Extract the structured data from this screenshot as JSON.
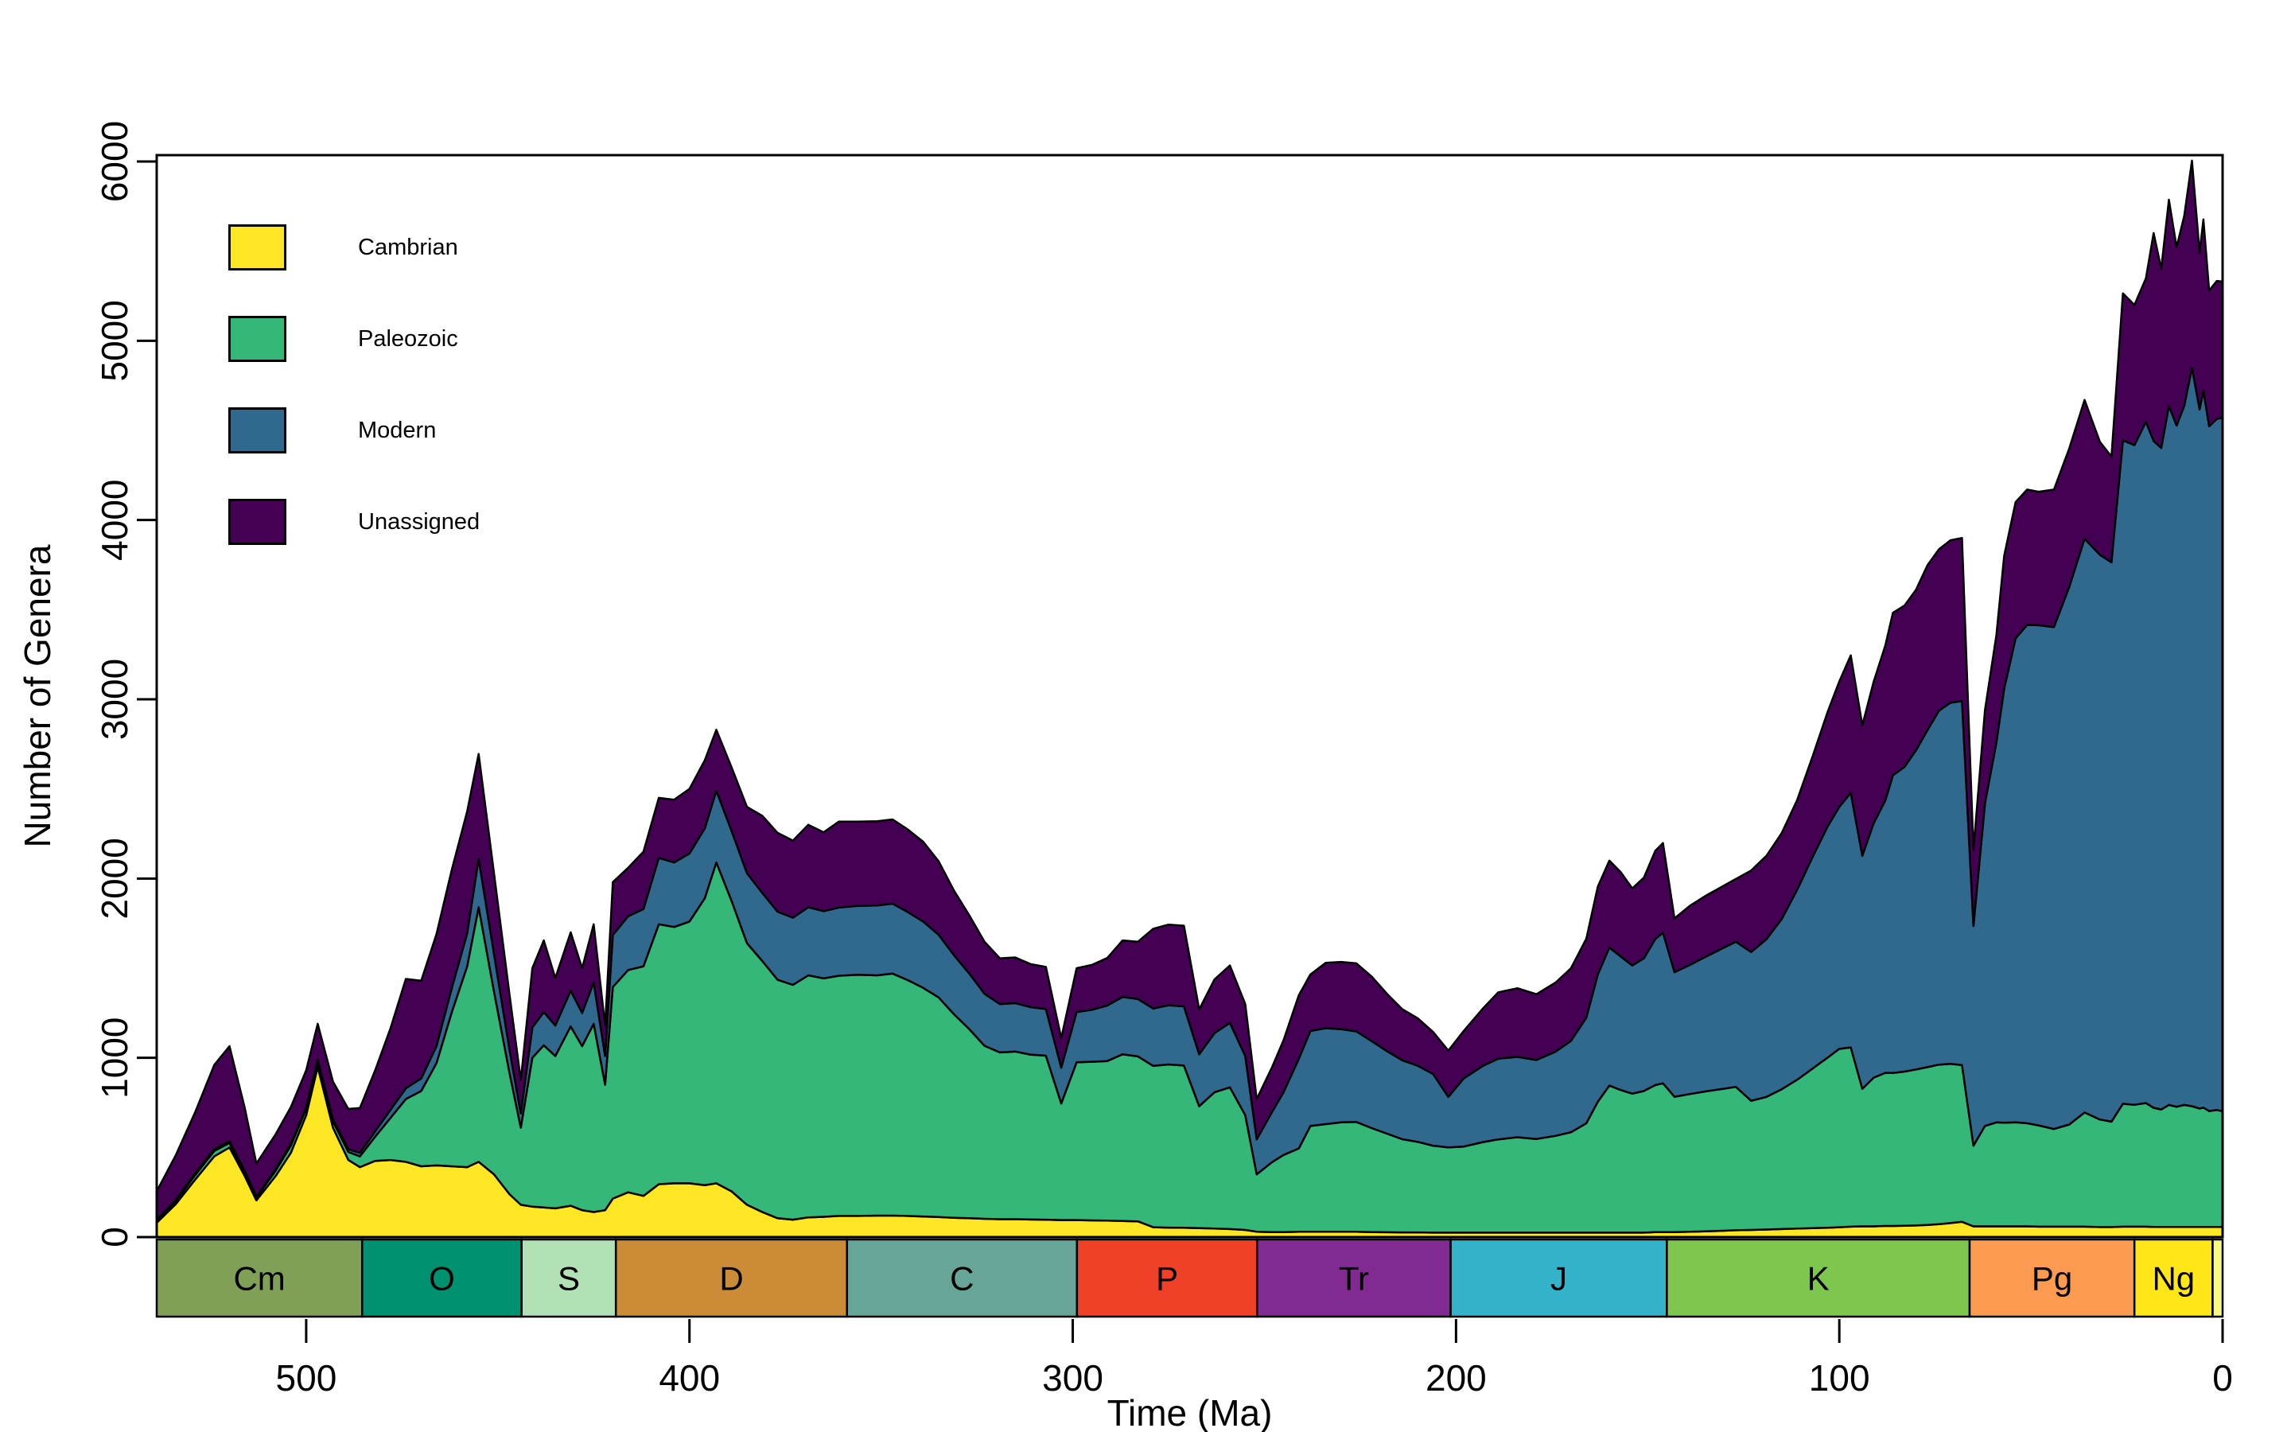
{
  "figure": {
    "background": "#ffffff",
    "border_color": "#000000"
  },
  "axes": {
    "y": {
      "label": "Number of Genera",
      "ticks": [
        0,
        1000,
        2000,
        3000,
        4000,
        5000,
        6000
      ],
      "range": [
        0,
        6000
      ]
    },
    "x": {
      "label": "Time (Ma)",
      "ticks": [
        500,
        400,
        300,
        200,
        100,
        0
      ],
      "range": [
        539,
        0
      ],
      "direction": "reversed"
    }
  },
  "legend": {
    "items": [
      {
        "label": "Cambrian",
        "color": "#FDE725"
      },
      {
        "label": "Paleozoic",
        "color": "#35B779"
      },
      {
        "label": "Modern",
        "color": "#31688E"
      },
      {
        "label": "Unassigned",
        "color": "#440154"
      }
    ]
  },
  "geologic_periods": [
    {
      "abbr": "Cm",
      "start": 539,
      "end": 485.4,
      "color": "#7FA056"
    },
    {
      "abbr": "O",
      "start": 485.4,
      "end": 443.8,
      "color": "#009270"
    },
    {
      "abbr": "S",
      "start": 443.8,
      "end": 419.2,
      "color": "#B3E1B6"
    },
    {
      "abbr": "D",
      "start": 419.2,
      "end": 358.9,
      "color": "#CB8C37"
    },
    {
      "abbr": "C",
      "start": 358.9,
      "end": 298.9,
      "color": "#67A599"
    },
    {
      "abbr": "P",
      "start": 298.9,
      "end": 251.9,
      "color": "#F04028"
    },
    {
      "abbr": "Tr",
      "start": 251.9,
      "end": 201.4,
      "color": "#812B92"
    },
    {
      "abbr": "J",
      "start": 201.4,
      "end": 145.0,
      "color": "#34B2C9"
    },
    {
      "abbr": "K",
      "start": 145.0,
      "end": 66.0,
      "color": "#7FC64E"
    },
    {
      "abbr": "Pg",
      "start": 66.0,
      "end": 23.0,
      "color": "#FD9A52"
    },
    {
      "abbr": "Ng",
      "start": 23.0,
      "end": 2.6,
      "color": "#FFE619"
    },
    {
      "abbr": "",
      "start": 2.6,
      "end": 0,
      "color": "#F9F97F"
    }
  ],
  "chart_data": {
    "type": "area",
    "stacked": true,
    "xlabel": "Time (Ma)",
    "ylabel": "Number of Genera",
    "xlim": [
      539,
      0
    ],
    "ylim": [
      0,
      6000
    ],
    "grid": false,
    "legend_position": "top-left-inside",
    "series_names": [
      "Cambrian",
      "Paleozoic",
      "Modern",
      "Unassigned"
    ],
    "series_colors": [
      "#FDE725",
      "#35B779",
      "#31688E",
      "#440154"
    ],
    "outline_color": "#000000",
    "points_format": [
      "time_ma",
      "cambrian",
      "paleozoic",
      "modern",
      "unassigned"
    ],
    "points": [
      [
        539,
        80,
        10,
        5,
        160
      ],
      [
        534,
        185,
        15,
        8,
        250
      ],
      [
        529,
        320,
        25,
        10,
        340
      ],
      [
        524,
        450,
        30,
        10,
        470
      ],
      [
        520,
        500,
        25,
        10,
        530
      ],
      [
        516,
        340,
        20,
        8,
        350
      ],
      [
        513,
        205,
        15,
        5,
        185
      ],
      [
        508,
        340,
        30,
        8,
        195
      ],
      [
        504,
        470,
        40,
        10,
        205
      ],
      [
        500,
        680,
        35,
        10,
        205
      ],
      [
        497,
        950,
        30,
        10,
        200
      ],
      [
        493,
        610,
        35,
        12,
        210
      ],
      [
        489,
        430,
        45,
        15,
        225
      ],
      [
        486,
        390,
        60,
        20,
        250
      ],
      [
        482,
        425,
        135,
        30,
        340
      ],
      [
        478,
        430,
        235,
        45,
        455
      ],
      [
        474,
        420,
        350,
        60,
        610
      ],
      [
        470,
        395,
        420,
        70,
        545
      ],
      [
        466,
        400,
        570,
        95,
        625
      ],
      [
        462,
        395,
        860,
        135,
        660
      ],
      [
        458,
        390,
        1120,
        185,
        680
      ],
      [
        455,
        420,
        1420,
        270,
        585
      ],
      [
        451,
        350,
        1020,
        210,
        450
      ],
      [
        447,
        240,
        680,
        130,
        310
      ],
      [
        444,
        180,
        430,
        80,
        185
      ],
      [
        441,
        170,
        830,
        170,
        330
      ],
      [
        438,
        165,
        905,
        185,
        400
      ],
      [
        435,
        160,
        850,
        170,
        265
      ],
      [
        431,
        175,
        1000,
        200,
        325
      ],
      [
        428,
        150,
        915,
        185,
        250
      ],
      [
        425,
        140,
        1050,
        230,
        325
      ],
      [
        422,
        150,
        700,
        160,
        170
      ],
      [
        420,
        215,
        1180,
        290,
        295
      ],
      [
        416,
        250,
        1240,
        300,
        270
      ],
      [
        412,
        230,
        1280,
        320,
        320
      ],
      [
        408,
        295,
        1450,
        370,
        335
      ],
      [
        404,
        300,
        1430,
        360,
        350
      ],
      [
        400,
        300,
        1460,
        380,
        360
      ],
      [
        396,
        290,
        1600,
        390,
        380
      ],
      [
        393,
        300,
        1790,
        400,
        340
      ],
      [
        389,
        255,
        1620,
        390,
        355
      ],
      [
        385,
        180,
        1460,
        390,
        370
      ],
      [
        381,
        140,
        1400,
        380,
        430
      ],
      [
        377,
        105,
        1330,
        380,
        440
      ],
      [
        373,
        97,
        1310,
        375,
        430
      ],
      [
        369,
        110,
        1350,
        380,
        460
      ],
      [
        365,
        113,
        1330,
        375,
        440
      ],
      [
        361,
        118,
        1340,
        380,
        480
      ],
      [
        356,
        118,
        1345,
        385,
        470
      ],
      [
        351,
        120,
        1340,
        390,
        470
      ],
      [
        347,
        120,
        1350,
        390,
        470
      ],
      [
        343,
        118,
        1315,
        380,
        460
      ],
      [
        339,
        115,
        1275,
        370,
        445
      ],
      [
        335,
        112,
        1225,
        350,
        410
      ],
      [
        331,
        108,
        1135,
        330,
        360
      ],
      [
        327,
        105,
        1055,
        310,
        325
      ],
      [
        323,
        102,
        965,
        290,
        290
      ],
      [
        319,
        100,
        930,
        270,
        255
      ],
      [
        315,
        100,
        935,
        270,
        255
      ],
      [
        311,
        98,
        920,
        265,
        240
      ],
      [
        307,
        97,
        915,
        260,
        235
      ],
      [
        303,
        95,
        650,
        200,
        165
      ],
      [
        299,
        95,
        880,
        280,
        245
      ],
      [
        295,
        93,
        885,
        290,
        250
      ],
      [
        291,
        92,
        890,
        310,
        265
      ],
      [
        287,
        90,
        930,
        320,
        315
      ],
      [
        283,
        88,
        920,
        320,
        320
      ],
      [
        279,
        55,
        900,
        320,
        445
      ],
      [
        275,
        53,
        910,
        330,
        450
      ],
      [
        271,
        52,
        905,
        330,
        450
      ],
      [
        267,
        50,
        680,
        290,
        250
      ],
      [
        263,
        48,
        760,
        330,
        300
      ],
      [
        259,
        45,
        790,
        360,
        320
      ],
      [
        255,
        40,
        640,
        330,
        290
      ],
      [
        252,
        30,
        320,
        195,
        225
      ],
      [
        248,
        28,
        390,
        280,
        250
      ],
      [
        245,
        28,
        430,
        350,
        290
      ],
      [
        241,
        30,
        465,
        500,
        355
      ],
      [
        238,
        30,
        590,
        530,
        315
      ],
      [
        234,
        30,
        600,
        535,
        365
      ],
      [
        230,
        30,
        610,
        520,
        375
      ],
      [
        226,
        30,
        612,
        505,
        380
      ],
      [
        222,
        28,
        580,
        485,
        360
      ],
      [
        218,
        27,
        550,
        460,
        320
      ],
      [
        214,
        26,
        520,
        440,
        285
      ],
      [
        210,
        26,
        505,
        425,
        265
      ],
      [
        206,
        25,
        485,
        400,
        235
      ],
      [
        202,
        25,
        475,
        282,
        258
      ],
      [
        198,
        25,
        480,
        380,
        265
      ],
      [
        193,
        25,
        505,
        425,
        320
      ],
      [
        189,
        25,
        520,
        450,
        370
      ],
      [
        184,
        25,
        532,
        448,
        383
      ],
      [
        179,
        25,
        522,
        441,
        367
      ],
      [
        174,
        25,
        540,
        470,
        385
      ],
      [
        170,
        25,
        560,
        510,
        405
      ],
      [
        166,
        25,
        610,
        590,
        440
      ],
      [
        163,
        25,
        730,
        710,
        490
      ],
      [
        160,
        25,
        820,
        770,
        485
      ],
      [
        157,
        25,
        795,
        745,
        470
      ],
      [
        154,
        25,
        775,
        715,
        430
      ],
      [
        151,
        25,
        790,
        740,
        450
      ],
      [
        148,
        28,
        820,
        815,
        492
      ],
      [
        146,
        28,
        830,
        840,
        500
      ],
      [
        143,
        28,
        755,
        695,
        300
      ],
      [
        139,
        30,
        768,
        720,
        330
      ],
      [
        135,
        32,
        780,
        750,
        340
      ],
      [
        131,
        35,
        790,
        780,
        345
      ],
      [
        127,
        38,
        800,
        810,
        350
      ],
      [
        123,
        40,
        720,
        830,
        455
      ],
      [
        119,
        42,
        740,
        880,
        465
      ],
      [
        115,
        45,
        780,
        950,
        480
      ],
      [
        111,
        48,
        830,
        1060,
        500
      ],
      [
        107,
        50,
        890,
        1180,
        560
      ],
      [
        103,
        52,
        950,
        1290,
        640
      ],
      [
        100,
        55,
        995,
        1350,
        700
      ],
      [
        97,
        58,
        1000,
        1420,
        767
      ],
      [
        94,
        60,
        767,
        1300,
        728
      ],
      [
        91,
        60,
        830,
        1420,
        790
      ],
      [
        88,
        62,
        854,
        1520,
        864
      ],
      [
        86,
        62,
        854,
        1660,
        907
      ],
      [
        83,
        63,
        860,
        1700,
        900
      ],
      [
        80,
        65,
        870,
        1780,
        895
      ],
      [
        77,
        68,
        880,
        1880,
        920
      ],
      [
        74,
        72,
        890,
        1975,
        900
      ],
      [
        71,
        78,
        888,
        2015,
        906
      ],
      [
        68,
        85,
        875,
        2030,
        910
      ],
      [
        65,
        60,
        450,
        1225,
        425
      ],
      [
        62,
        60,
        560,
        1800,
        520
      ],
      [
        59,
        60,
        580,
        2120,
        600
      ],
      [
        57,
        60,
        578,
        2420,
        742
      ],
      [
        54,
        60,
        580,
        2700,
        760
      ],
      [
        51,
        60,
        575,
        2780,
        755
      ],
      [
        48,
        58,
        565,
        2790,
        745
      ],
      [
        44,
        58,
        545,
        2800,
        767
      ],
      [
        40,
        58,
        570,
        3000,
        772
      ],
      [
        36,
        58,
        637,
        3200,
        775
      ],
      [
        32,
        56,
        600,
        3150,
        630
      ],
      [
        29,
        56,
        588,
        3120,
        590
      ],
      [
        26,
        58,
        686,
        3700,
        820
      ],
      [
        23,
        58,
        680,
        3680,
        782
      ],
      [
        20,
        58,
        690,
        3800,
        800
      ],
      [
        18,
        57,
        664,
        3720,
        1160
      ],
      [
        16,
        57,
        655,
        3690,
        1000
      ],
      [
        14,
        57,
        680,
        3900,
        1150
      ],
      [
        12,
        57,
        670,
        3800,
        995
      ],
      [
        10,
        57,
        680,
        3900,
        1060
      ],
      [
        8,
        57,
        673,
        4120,
        1155
      ],
      [
        6,
        57,
        660,
        3900,
        875
      ],
      [
        5,
        57,
        665,
        4000,
        955
      ],
      [
        3.5,
        57,
        646,
        3820,
        757
      ],
      [
        1.5,
        57,
        652,
        3855,
        770
      ],
      [
        0,
        57,
        645,
        3870,
        758
      ]
    ]
  }
}
